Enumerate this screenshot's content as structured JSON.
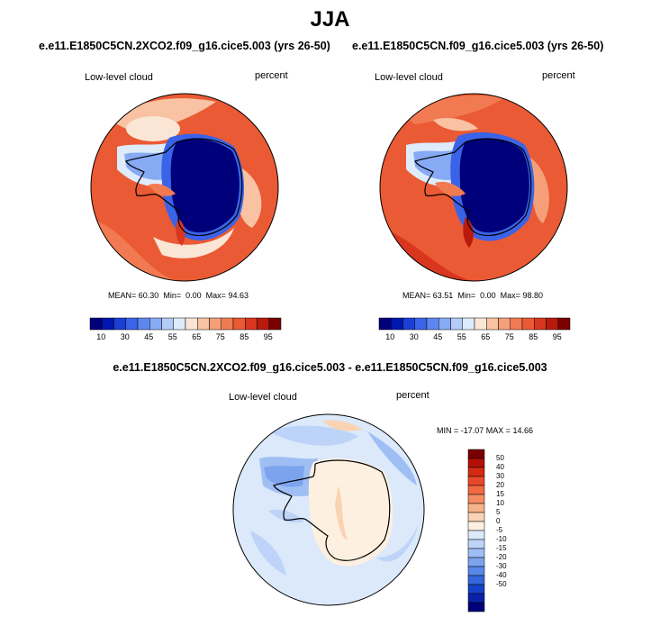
{
  "figure": {
    "season": "JJA",
    "panels": [
      {
        "id": "case",
        "title": "e.e11.E1850C5CN.2XCO2.f09_g16.cice5.003 (yrs 26-50)",
        "variable": "Low-level cloud",
        "units": "percent",
        "stats": {
          "mean_label": "MEAN=",
          "mean": "60.30",
          "min_label": "Min=",
          "min": "0.00",
          "max_label": "Max=",
          "max": "94.63"
        }
      },
      {
        "id": "control",
        "title": "e.e11.E1850C5CN.f09_g16.cice5.003 (yrs 26-50)",
        "variable": "Low-level cloud",
        "units": "percent",
        "stats": {
          "mean_label": "MEAN=",
          "mean": "63.51",
          "min_label": "Min=",
          "min": "0.00",
          "max_label": "Max=",
          "max": "98.80"
        }
      },
      {
        "id": "difference",
        "title": "e.e11.E1850C5CN.2XCO2.f09_g16.cice5.003 - e.e11.E1850C5CN.f09_g16.cice5.003",
        "variable": "Low-level cloud",
        "units": "percent",
        "stats_text": "MIN = -17.07  MAX =  14.66"
      }
    ],
    "colorbar_abs": {
      "colors": [
        "#00007a",
        "#0016b0",
        "#1a3fd6",
        "#3a63e8",
        "#5d87f0",
        "#87aaf5",
        "#b3ccf8",
        "#deebfb",
        "#fbe6d6",
        "#f8c2a3",
        "#f59f78",
        "#f27a52",
        "#ea5a34",
        "#d8361e",
        "#b81a0c",
        "#7a0000"
      ],
      "labels": [
        "10",
        "30",
        "45",
        "55",
        "65",
        "75",
        "85",
        "95"
      ]
    },
    "colorbar_diff": {
      "colors": [
        "#7a0000",
        "#b31005",
        "#d42a13",
        "#e8482a",
        "#f06a43",
        "#f48e62",
        "#f7b288",
        "#fad3b4",
        "#fdf0e0",
        "#dbe9fb",
        "#bdd4f8",
        "#9fbef4",
        "#7ca3ee",
        "#5987e8",
        "#3566dd",
        "#1742c8",
        "#0a22a8",
        "#00007a"
      ],
      "labels": [
        "50",
        "40",
        "30",
        "20",
        "15",
        "10",
        "5",
        "0",
        "-5",
        "-10",
        "-15",
        "-20",
        "-30",
        "-40",
        "-50"
      ]
    }
  }
}
